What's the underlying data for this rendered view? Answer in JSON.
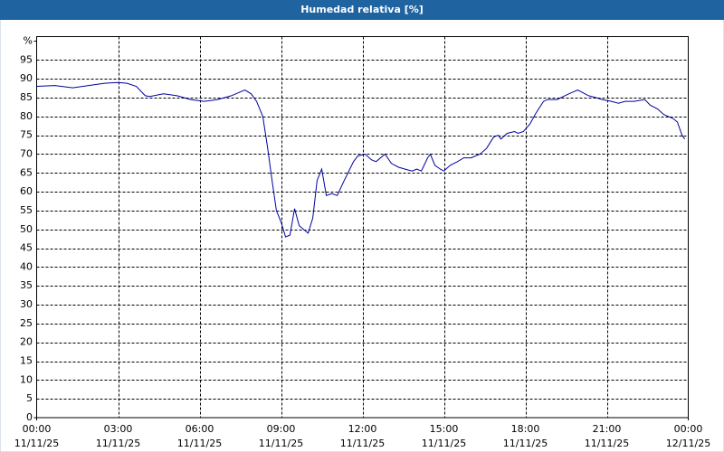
{
  "chart_data": {
    "type": "line",
    "title": "Humedad relativa [%]",
    "x": [
      0,
      0.67,
      1.33,
      2,
      2.5,
      3,
      3.33,
      3.67,
      4,
      4.17,
      4.67,
      5.17,
      5.67,
      6.17,
      6.67,
      7.17,
      7.5,
      7.67,
      7.9,
      8.1,
      8.33,
      8.5,
      8.67,
      8.83,
      9,
      9.17,
      9.33,
      9.5,
      9.67,
      9.83,
      10,
      10.17,
      10.33,
      10.5,
      10.67,
      10.87,
      11.07,
      11.33,
      11.67,
      11.83,
      12.1,
      12.33,
      12.5,
      12.83,
      13.07,
      13.33,
      13.57,
      13.83,
      14,
      14.17,
      14.4,
      14.5,
      14.67,
      14.87,
      15,
      15.23,
      15.5,
      15.73,
      16,
      16.33,
      16.57,
      16.83,
      17,
      17.1,
      17.33,
      17.6,
      17.73,
      17.93,
      18.17,
      18.4,
      18.67,
      18.83,
      19.17,
      19.6,
      19.93,
      20.33,
      20.6,
      20.83,
      21.17,
      21.43,
      21.67,
      22,
      22.4,
      22.6,
      22.87,
      23.1,
      23.43,
      23.6,
      23.77,
      23.87
    ],
    "series": [
      {
        "color": "#0000a0",
        "values": [
          88,
          88.2,
          87.6,
          88.3,
          88.8,
          89,
          88.8,
          88,
          85.5,
          85.3,
          86,
          85.5,
          84.5,
          84,
          84.5,
          85.5,
          86.5,
          87,
          86,
          84,
          80,
          72,
          63,
          55,
          52,
          48,
          48.5,
          55.5,
          51,
          50,
          49,
          53,
          63,
          66,
          59,
          59.5,
          59,
          63,
          68,
          69.5,
          70,
          68.5,
          68,
          70,
          67.5,
          66.5,
          66,
          65.5,
          66,
          65.5,
          69,
          70,
          67,
          66,
          65.5,
          67,
          68,
          69,
          69,
          70,
          71.5,
          74.5,
          75,
          74,
          75.5,
          76,
          75.5,
          76,
          78,
          81,
          84,
          84.5,
          84.5,
          86,
          87,
          85.5,
          85,
          84.5,
          84,
          83.5,
          84,
          84,
          84.5,
          83,
          82,
          80.5,
          79.5,
          78.5,
          75,
          74
        ]
      }
    ],
    "xlim": [
      0,
      24
    ],
    "xticks": [
      {
        "value": 0,
        "label": "00:00"
      },
      {
        "value": 3,
        "label": "03:00"
      },
      {
        "value": 6,
        "label": "06:00"
      },
      {
        "value": 9,
        "label": "09:00"
      },
      {
        "value": 12,
        "label": "12:00"
      },
      {
        "value": 15,
        "label": "15:00"
      },
      {
        "value": 18,
        "label": "18:00"
      },
      {
        "value": 21,
        "label": "21:00"
      },
      {
        "value": 24,
        "label": "00:00"
      }
    ],
    "xtick_dates": [
      "11/11/25",
      "11/11/25",
      "11/11/25",
      "11/11/25",
      "11/11/25",
      "11/11/25",
      "11/11/25",
      "11/11/25",
      "12/11/25"
    ],
    "ylim": [
      0,
      100
    ],
    "yticks": [
      0,
      5,
      10,
      15,
      20,
      25,
      30,
      35,
      40,
      45,
      50,
      55,
      60,
      65,
      70,
      75,
      80,
      85,
      90,
      95,
      {
        "value": 100,
        "label": "%"
      }
    ],
    "grid": true
  }
}
